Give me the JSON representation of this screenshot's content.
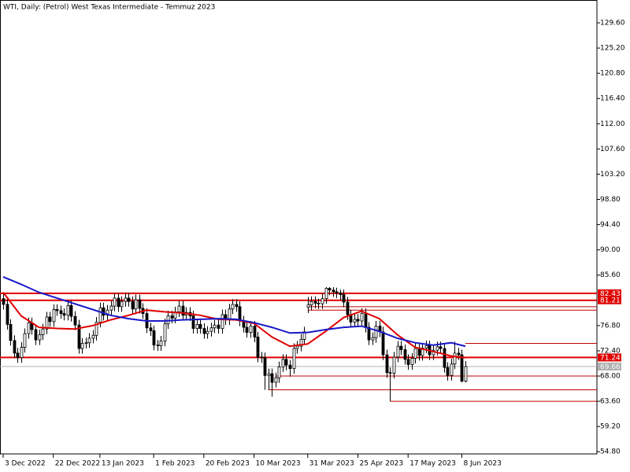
{
  "chart_data": {
    "type": "candlestick",
    "title": "WTI, Daily:  (Petrol) West Texas Intermediate - Temmuz 2023",
    "xlim": [
      -0.88,
      165.7
    ],
    "xticks": [
      {
        "value": 0,
        "label": "3 Dec 2022"
      },
      {
        "value": 14,
        "label": "22 Dec 2022"
      },
      {
        "value": 27,
        "label": "13 Jan 2023"
      },
      {
        "value": 42,
        "label": "1 Feb 2023"
      },
      {
        "value": 56,
        "label": "20 Feb 2023"
      },
      {
        "value": 70,
        "label": "10 Mar 2023"
      },
      {
        "value": 85,
        "label": "31 Mar 2023"
      },
      {
        "value": 99,
        "label": "25 Apr 2023"
      },
      {
        "value": 113,
        "label": "17 May 2023"
      },
      {
        "value": 128,
        "label": "8 Jun 2023"
      }
    ],
    "ylim": [
      54.42,
      133.58
    ],
    "yticks": [
      {
        "value": 129.6,
        "label": "129.60"
      },
      {
        "value": 125.2,
        "label": "125.20"
      },
      {
        "value": 120.8,
        "label": "120.80"
      },
      {
        "value": 116.4,
        "label": "116.40"
      },
      {
        "value": 112,
        "label": "112.00"
      },
      {
        "value": 107.6,
        "label": "107.60"
      },
      {
        "value": 103.2,
        "label": "103.20"
      },
      {
        "value": 98.8,
        "label": "98.80"
      },
      {
        "value": 94.4,
        "label": "94.40"
      },
      {
        "value": 90,
        "label": "90.00"
      },
      {
        "value": 85.6,
        "label": "85.60"
      },
      {
        "value": 76.8,
        "label": "76.80"
      },
      {
        "value": 72.4,
        "label": "72.40"
      },
      {
        "value": 68,
        "label": "68.00"
      },
      {
        "value": 63.6,
        "label": "63.60"
      },
      {
        "value": 59.2,
        "label": "59.20"
      },
      {
        "value": 54.8,
        "label": "54.80"
      }
    ],
    "candle_color": "#000000",
    "open": [
      81.5,
      80.5,
      77.0,
      74.2,
      72.0,
      71.2,
      73.0,
      75.4,
      77.3,
      76.1,
      74.3,
      75.2,
      76.2,
      78.3,
      77.5,
      79.6,
      79.4,
      78.9,
      78.6,
      80.3,
      78.4,
      76.9,
      72.8,
      73.7,
      73.8,
      74.6,
      75.1,
      77.4,
      79.9,
      78.6,
      79.5,
      80.2,
      81.6,
      80.1,
      81.0,
      81.6,
      81.0,
      79.7,
      81.3,
      79.8,
      78.9,
      76.4,
      75.9,
      73.4,
      73.3,
      74.1,
      77.1,
      78.5,
      78.1,
      79.2,
      80.2,
      78.6,
      79.1,
      78.5,
      76.3,
      77.0,
      76.3,
      75.4,
      75.8,
      76.4,
      76.9,
      76.3,
      78.7,
      77.8,
      79.7,
      80.5,
      80.1,
      77.6,
      76.5,
      75.6,
      76.7,
      74.8,
      71.3,
      71.2,
      68.1,
      68.4,
      66.9,
      67.7,
      69.6,
      70.9,
      69.9,
      69.3,
      72.8,
      73.2,
      74.4,
      80.0,
      80.4,
      81.0,
      80.7,
      80.6,
      81.5,
      83.3,
      83.0,
      82.7,
      82.5,
      82.2,
      80.9,
      78.7,
      77.4,
      77.9,
      77.6,
      78.9,
      76.5,
      74.3,
      74.7,
      76.7,
      75.7,
      71.7,
      68.6,
      68.5,
      71.3,
      73.2,
      72.6,
      70.9,
      70.0,
      71.1,
      72.8,
      71.6,
      72.9,
      73.3,
      71.7,
      72.5,
      73.1,
      72.8,
      69.5,
      68.1,
      70.1,
      72.0,
      71.7,
      67.1
    ],
    "high": [
      82.4,
      81.4,
      77.9,
      75.1,
      72.9,
      73.9,
      76.3,
      78.2,
      78.2,
      77.0,
      76.1,
      77.1,
      79.2,
      79.2,
      80.5,
      80.5,
      80.3,
      79.8,
      81.2,
      81.2,
      79.3,
      77.8,
      74.6,
      74.7,
      75.5,
      76.0,
      78.3,
      80.8,
      80.8,
      80.4,
      81.1,
      82.5,
      82.5,
      81.9,
      82.5,
      82.5,
      81.9,
      82.2,
      82.2,
      80.7,
      79.8,
      77.3,
      76.8,
      74.3,
      75.0,
      78.0,
      79.4,
      79.4,
      80.1,
      81.1,
      81.1,
      80.0,
      80.0,
      79.4,
      77.9,
      77.9,
      77.2,
      76.7,
      77.3,
      77.8,
      77.8,
      79.6,
      79.6,
      80.6,
      81.4,
      81.4,
      81.0,
      78.5,
      77.4,
      77.6,
      77.6,
      75.7,
      72.2,
      72.1,
      69.3,
      69.3,
      68.6,
      70.5,
      71.8,
      71.8,
      70.8,
      73.7,
      74.1,
      75.3,
      76.6,
      81.8,
      81.9,
      81.9,
      81.5,
      82.4,
      83.5,
      83.5,
      83.5,
      83.4,
      83.1,
      83.1,
      81.8,
      79.6,
      78.8,
      78.8,
      79.8,
      79.8,
      77.4,
      75.6,
      77.6,
      77.6,
      76.6,
      72.6,
      69.5,
      72.2,
      74.1,
      74.1,
      73.5,
      71.8,
      72.0,
      73.7,
      73.7,
      73.8,
      74.2,
      74.2,
      73.4,
      74.0,
      74.0,
      73.7,
      70.4,
      71.0,
      74.0,
      72.9,
      72.6,
      70.6
    ],
    "low": [
      79.6,
      76.1,
      73.3,
      71.1,
      70.3,
      70.3,
      72.1,
      74.5,
      75.2,
      73.4,
      73.4,
      74.3,
      75.3,
      76.6,
      76.6,
      78.5,
      78.0,
      77.7,
      77.7,
      77.5,
      76.0,
      71.9,
      71.9,
      72.8,
      72.9,
      73.7,
      74.2,
      76.5,
      77.7,
      77.7,
      78.6,
      79.3,
      79.2,
      79.2,
      80.1,
      80.1,
      78.8,
      78.8,
      78.9,
      78.0,
      75.5,
      75.0,
      72.5,
      72.4,
      72.4,
      73.2,
      76.2,
      77.2,
      77.2,
      78.3,
      77.7,
      77.7,
      77.6,
      75.4,
      75.4,
      75.4,
      74.5,
      74.5,
      74.9,
      75.5,
      75.4,
      75.4,
      76.9,
      76.9,
      78.8,
      79.2,
      76.7,
      75.6,
      74.7,
      74.7,
      73.9,
      70.4,
      70.3,
      65.6,
      65.6,
      64.4,
      66.0,
      66.8,
      68.7,
      69.0,
      67.9,
      68.4,
      71.9,
      72.3,
      73.5,
      79.0,
      79.5,
      79.8,
      79.7,
      79.7,
      80.6,
      82.1,
      81.8,
      81.6,
      81.3,
      80.0,
      77.8,
      76.5,
      76.5,
      76.7,
      76.7,
      75.6,
      73.4,
      73.4,
      73.8,
      74.8,
      70.8,
      67.7,
      63.6,
      67.6,
      70.4,
      71.7,
      70.0,
      69.1,
      69.1,
      70.2,
      70.7,
      70.7,
      72.0,
      70.8,
      70.8,
      71.6,
      71.9,
      68.6,
      67.2,
      67.2,
      69.2,
      70.8,
      66.9,
      66.9
    ],
    "close": [
      80.5,
      77.0,
      74.2,
      72.0,
      71.2,
      73.0,
      75.4,
      77.3,
      76.1,
      74.3,
      75.2,
      76.2,
      78.3,
      77.5,
      79.6,
      79.4,
      78.9,
      78.6,
      80.3,
      78.4,
      76.9,
      72.8,
      73.7,
      73.8,
      74.6,
      75.1,
      77.4,
      79.9,
      78.6,
      79.5,
      80.2,
      81.6,
      80.1,
      81.0,
      81.6,
      81.0,
      79.7,
      81.3,
      79.8,
      78.9,
      76.4,
      75.9,
      73.4,
      73.3,
      74.1,
      77.1,
      78.5,
      78.1,
      79.2,
      80.2,
      78.6,
      79.1,
      78.5,
      76.3,
      77.0,
      76.3,
      75.4,
      75.8,
      76.4,
      76.9,
      76.3,
      78.7,
      77.8,
      79.7,
      80.5,
      80.1,
      77.6,
      76.5,
      75.6,
      76.7,
      74.8,
      71.3,
      71.2,
      68.1,
      68.4,
      66.9,
      67.7,
      69.6,
      70.9,
      69.9,
      69.3,
      72.8,
      73.2,
      74.4,
      75.7,
      80.4,
      81.0,
      80.7,
      80.6,
      81.5,
      83.3,
      83.0,
      82.7,
      82.5,
      82.2,
      80.9,
      78.7,
      77.4,
      77.9,
      77.6,
      78.9,
      76.5,
      74.3,
      74.7,
      76.7,
      75.7,
      71.7,
      68.6,
      68.5,
      71.3,
      73.2,
      72.6,
      70.9,
      70.0,
      71.1,
      72.8,
      71.6,
      72.9,
      73.3,
      71.7,
      72.5,
      73.1,
      72.8,
      69.5,
      68.1,
      70.1,
      72.0,
      71.7,
      67.1,
      69.66
    ],
    "series": [
      {
        "color": "#e00000",
        "x": [
          0,
          5,
          10,
          15,
          20,
          25,
          30,
          35,
          40,
          45,
          50,
          55,
          60,
          65,
          70,
          75,
          80,
          85,
          90,
          95,
          100,
          105,
          110,
          115,
          120,
          125,
          129
        ],
        "values": [
          82.6,
          78.5,
          76.5,
          76.3,
          76.2,
          76.8,
          77.8,
          78.6,
          79.5,
          79.2,
          79.0,
          78.6,
          77.9,
          77.8,
          77.2,
          74.8,
          73.2,
          73.6,
          75.8,
          78.2,
          79.3,
          78.0,
          75.2,
          73.0,
          72.3,
          71.5,
          71.2
        ]
      },
      {
        "color": "#1818c8",
        "x": [
          0,
          5,
          10,
          15,
          20,
          25,
          30,
          35,
          40,
          45,
          50,
          55,
          60,
          65,
          70,
          75,
          80,
          85,
          90,
          95,
          100,
          105,
          110,
          115,
          120,
          125,
          129
        ],
        "values": [
          85.3,
          84.0,
          82.6,
          81.6,
          80.6,
          79.6,
          78.6,
          78.0,
          77.6,
          77.6,
          77.8,
          77.9,
          78.0,
          77.9,
          77.3,
          76.5,
          75.5,
          75.6,
          76.1,
          76.5,
          76.7,
          75.8,
          74.6,
          73.8,
          73.4,
          73.8,
          73.2
        ]
      }
    ],
    "levels": [
      {
        "value": 82.43,
        "from": -0.88,
        "color": "#e00000",
        "width": 2,
        "tag": true
      },
      {
        "value": 81.21,
        "from": -0.88,
        "color": "#e00000",
        "width": 2,
        "tag": true
      },
      {
        "value": 71.24,
        "from": -0.88,
        "color": "#e00000",
        "width": 2,
        "tag": true
      },
      {
        "value": 69.66,
        "from": -0.88,
        "color": "#b0b0b0",
        "width": 1,
        "tag": true
      },
      {
        "value": 80.1,
        "from": 85,
        "color": "#c00000",
        "width": 1,
        "tag": false
      },
      {
        "value": 79.5,
        "from": 85,
        "color": "#c00000",
        "width": 1,
        "tag": false
      },
      {
        "value": 73.7,
        "from": 129,
        "color": "#c00000",
        "width": 1,
        "tag": false
      },
      {
        "value": 68.0,
        "from": 76,
        "color": "#c00000",
        "width": 1,
        "tag": false
      },
      {
        "value": 65.6,
        "from": 74,
        "color": "#c00000",
        "width": 1,
        "tag": false
      },
      {
        "value": 63.6,
        "from": 108,
        "color": "#c00000",
        "width": 1,
        "tag": false
      }
    ]
  }
}
